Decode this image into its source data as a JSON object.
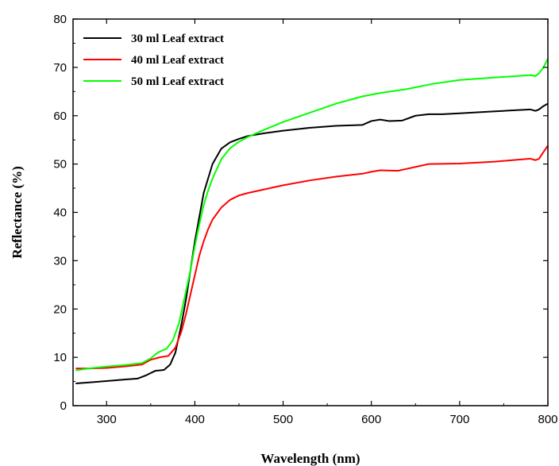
{
  "chart_data": {
    "type": "line",
    "title": "",
    "xlabel": "Wavelength (nm)",
    "ylabel": "Reflectance (%)",
    "xlim": [
      262,
      800
    ],
    "ylim": [
      0,
      80
    ],
    "xticks": [
      300,
      400,
      500,
      600,
      700,
      800
    ],
    "yticks": [
      0,
      10,
      20,
      30,
      40,
      50,
      60,
      70,
      80
    ],
    "grid": false,
    "legend_position": "top-left",
    "series": [
      {
        "name": "30 ml Leaf extract",
        "color": "#000000",
        "points": [
          [
            265,
            4.6
          ],
          [
            280,
            4.8
          ],
          [
            300,
            5.1
          ],
          [
            320,
            5.4
          ],
          [
            335,
            5.6
          ],
          [
            345,
            6.3
          ],
          [
            355,
            7.2
          ],
          [
            365,
            7.4
          ],
          [
            372,
            8.5
          ],
          [
            378,
            11
          ],
          [
            385,
            17
          ],
          [
            390,
            22
          ],
          [
            395,
            28
          ],
          [
            400,
            34
          ],
          [
            405,
            39
          ],
          [
            410,
            44
          ],
          [
            415,
            47
          ],
          [
            420,
            50
          ],
          [
            430,
            53.2
          ],
          [
            440,
            54.5
          ],
          [
            450,
            55.2
          ],
          [
            460,
            55.8
          ],
          [
            480,
            56.4
          ],
          [
            500,
            56.9
          ],
          [
            530,
            57.5
          ],
          [
            560,
            57.9
          ],
          [
            590,
            58.1
          ],
          [
            600,
            58.9
          ],
          [
            610,
            59.2
          ],
          [
            620,
            58.9
          ],
          [
            635,
            59.0
          ],
          [
            650,
            60.0
          ],
          [
            665,
            60.3
          ],
          [
            680,
            60.3
          ],
          [
            700,
            60.5
          ],
          [
            720,
            60.7
          ],
          [
            740,
            60.9
          ],
          [
            760,
            61.1
          ],
          [
            780,
            61.3
          ],
          [
            786,
            61.0
          ],
          [
            790,
            61.3
          ],
          [
            795,
            62.0
          ],
          [
            800,
            62.5
          ]
        ]
      },
      {
        "name": "40 ml Leaf extract",
        "color": "#ff0000",
        "points": [
          [
            265,
            7.7
          ],
          [
            280,
            7.7
          ],
          [
            300,
            7.8
          ],
          [
            320,
            8.1
          ],
          [
            340,
            8.5
          ],
          [
            350,
            9.5
          ],
          [
            360,
            10.0
          ],
          [
            370,
            10.3
          ],
          [
            378,
            12
          ],
          [
            385,
            15.5
          ],
          [
            390,
            19
          ],
          [
            395,
            23
          ],
          [
            400,
            27
          ],
          [
            405,
            31
          ],
          [
            410,
            34
          ],
          [
            415,
            36.5
          ],
          [
            420,
            38.5
          ],
          [
            430,
            41
          ],
          [
            440,
            42.6
          ],
          [
            450,
            43.5
          ],
          [
            460,
            44.0
          ],
          [
            480,
            44.8
          ],
          [
            500,
            45.6
          ],
          [
            530,
            46.6
          ],
          [
            560,
            47.4
          ],
          [
            590,
            48.0
          ],
          [
            600,
            48.4
          ],
          [
            610,
            48.7
          ],
          [
            630,
            48.6
          ],
          [
            650,
            49.4
          ],
          [
            665,
            50.0
          ],
          [
            700,
            50.1
          ],
          [
            740,
            50.5
          ],
          [
            780,
            51.1
          ],
          [
            786,
            50.8
          ],
          [
            790,
            51.1
          ],
          [
            795,
            52.5
          ],
          [
            800,
            53.8
          ]
        ]
      },
      {
        "name": "50 ml Leaf extract",
        "color": "#00ff00",
        "points": [
          [
            265,
            7.3
          ],
          [
            280,
            7.7
          ],
          [
            300,
            8.1
          ],
          [
            320,
            8.4
          ],
          [
            340,
            8.8
          ],
          [
            350,
            9.8
          ],
          [
            358,
            11
          ],
          [
            368,
            11.8
          ],
          [
            375,
            13.5
          ],
          [
            382,
            17
          ],
          [
            388,
            22
          ],
          [
            395,
            28
          ],
          [
            400,
            33
          ],
          [
            405,
            37.5
          ],
          [
            410,
            41.5
          ],
          [
            415,
            44.5
          ],
          [
            420,
            47
          ],
          [
            430,
            51
          ],
          [
            440,
            53.3
          ],
          [
            450,
            54.6
          ],
          [
            460,
            55.6
          ],
          [
            480,
            57.2
          ],
          [
            500,
            58.7
          ],
          [
            530,
            60.6
          ],
          [
            560,
            62.5
          ],
          [
            590,
            64.0
          ],
          [
            610,
            64.7
          ],
          [
            640,
            65.5
          ],
          [
            670,
            66.6
          ],
          [
            700,
            67.4
          ],
          [
            740,
            67.9
          ],
          [
            780,
            68.4
          ],
          [
            786,
            68.2
          ],
          [
            790,
            68.8
          ],
          [
            795,
            70.0
          ],
          [
            800,
            71.8
          ]
        ]
      }
    ]
  }
}
